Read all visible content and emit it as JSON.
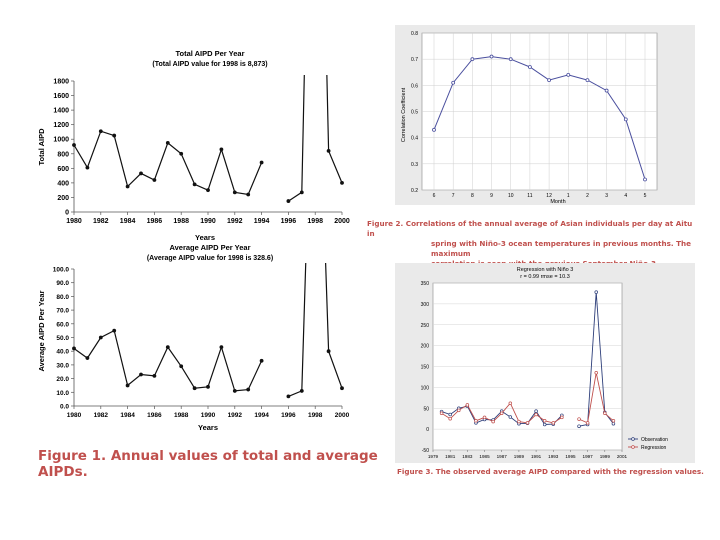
{
  "chart_data": [
    {
      "type": "line",
      "title": "Total AIPD Per Year",
      "subtitle": "(Total AIPD value for 1998 is 8,873)",
      "xlabel": "Years",
      "ylabel": "Total AIPD",
      "xlim": [
        1980,
        2000
      ],
      "ylim": [
        0,
        1800
      ],
      "xticks": [
        "1980",
        "1982",
        "1984",
        "1986",
        "1988",
        "1990",
        "1992",
        "1994",
        "1996",
        "1998",
        "2000"
      ],
      "yticks": [
        "0",
        "200",
        "400",
        "600",
        "800",
        "1000",
        "1200",
        "1400",
        "1600",
        "1800"
      ],
      "segments": [
        {
          "x": [
            1980,
            1981,
            1982,
            1983,
            1984,
            1985,
            1986,
            1987,
            1988,
            1989,
            1990,
            1991,
            1992,
            1993,
            1994
          ],
          "y": [
            920,
            610,
            1110,
            1050,
            350,
            530,
            440,
            950,
            800,
            380,
            300,
            860,
            270,
            240,
            680
          ]
        },
        {
          "x": [
            1996,
            1997,
            1998,
            1999,
            2000
          ],
          "y": [
            150,
            270,
            8873,
            840,
            400
          ]
        }
      ]
    },
    {
      "type": "line",
      "title": "Average AIPD Per Year",
      "subtitle": "(Average AIPD value for 1998 is 328.6)",
      "xlabel": "Years",
      "ylabel": "Average AIPD Per Year",
      "xlim": [
        1980,
        2000
      ],
      "ylim": [
        0,
        100
      ],
      "xticks": [
        "1980",
        "1982",
        "1984",
        "1986",
        "1988",
        "1990",
        "1992",
        "1994",
        "1996",
        "1998",
        "2000"
      ],
      "yticks": [
        "0.0",
        "10.0",
        "20.0",
        "30.0",
        "40.0",
        "50.0",
        "60.0",
        "70.0",
        "80.0",
        "90.0",
        "100.0"
      ],
      "segments": [
        {
          "x": [
            1980,
            1981,
            1982,
            1983,
            1984,
            1985,
            1986,
            1987,
            1988,
            1989,
            1990,
            1991,
            1992,
            1993,
            1994
          ],
          "y": [
            42,
            35,
            50,
            55,
            15,
            23,
            22,
            43,
            29,
            13,
            14,
            43,
            11,
            12,
            33
          ]
        },
        {
          "x": [
            1996,
            1997,
            1998,
            1999,
            2000
          ],
          "y": [
            7,
            11,
            328.6,
            40,
            13
          ]
        }
      ]
    },
    {
      "type": "line",
      "xlabel": "Month",
      "ylabel": "Correlation Coefficient",
      "ylim": [
        0.2,
        0.8
      ],
      "yticks": [
        "0.2",
        "0.3",
        "0.4",
        "0.5",
        "0.6",
        "0.7",
        "0.8"
      ],
      "categories": [
        "6",
        "7",
        "8",
        "9",
        "10",
        "11",
        "12",
        "1",
        "2",
        "3",
        "4",
        "5"
      ],
      "values": [
        0.43,
        0.61,
        0.7,
        0.71,
        0.7,
        0.67,
        0.62,
        0.64,
        0.62,
        0.58,
        0.47,
        0.24
      ]
    },
    {
      "type": "line",
      "title": "Regression with Niño 3",
      "subtitle": "r = 0.99 rmse = 10.3",
      "xlim": [
        1979,
        2001
      ],
      "ylim": [
        -50,
        350
      ],
      "xticks": [
        "1979",
        "1981",
        "1983",
        "1985",
        "1987",
        "1989",
        "1991",
        "1993",
        "1995",
        "1997",
        "1999",
        "2001"
      ],
      "yticks": [
        "-50",
        "0",
        "50",
        "100",
        "150",
        "200",
        "250",
        "300",
        "350"
      ],
      "series": [
        {
          "name": "Observation",
          "segments": [
            {
              "x": [
                1980,
                1981,
                1982,
                1983,
                1984,
                1985,
                1986,
                1987,
                1988,
                1989,
                1990,
                1991,
                1992,
                1993,
                1994
              ],
              "y": [
                42,
                35,
                50,
                55,
                15,
                23,
                22,
                43,
                29,
                13,
                14,
                43,
                11,
                12,
                33
              ]
            },
            {
              "x": [
                1996,
                1997,
                1998,
                1999,
                2000
              ],
              "y": [
                7,
                11,
                328,
                40,
                13
              ]
            }
          ]
        },
        {
          "name": "Regression",
          "segments": [
            {
              "x": [
                1980,
                1981,
                1982,
                1983,
                1984,
                1985,
                1986,
                1987,
                1988,
                1989,
                1990,
                1991,
                1992,
                1993,
                1994
              ],
              "y": [
                38,
                25,
                45,
                58,
                20,
                28,
                18,
                38,
                62,
                18,
                15,
                35,
                20,
                15,
                28
              ]
            },
            {
              "x": [
                1996,
                1997,
                1998,
                1999,
                2000
              ],
              "y": [
                24,
                15,
                135,
                38,
                20
              ]
            }
          ]
        }
      ],
      "legend_position": "bottom-right"
    }
  ],
  "captions": {
    "fig1": "Figure 1. Annual values of total and average AIPDs.",
    "fig2_line1": "Figure 2. Correlations of the annual average of Asian individuals per day at Aitu in",
    "fig2_line2": "spring with Niño-3 ocean temperatures in previous months. The maximum",
    "fig2_line3": "correlation is seen with the previous September Niño-3.",
    "fig3": "Figure 3. The observed average AIPD compared with the regression values."
  },
  "colors": {
    "caption": "#c0504d",
    "line_black": "#111111",
    "corr_line": "#4a4f9e",
    "observation": "#2e3f7a",
    "regression": "#c0504d",
    "panel_bg": "#eaeaea"
  }
}
